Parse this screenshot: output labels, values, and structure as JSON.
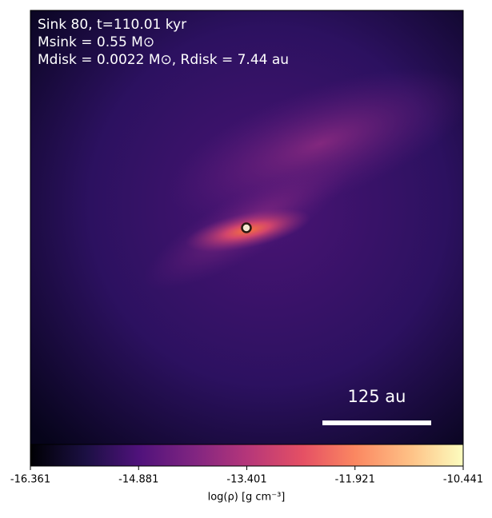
{
  "chart_data": {
    "type": "heatmap",
    "title": "Sink 80, t=110.01 kyr",
    "annotations": [
      "Msink = 0.55 M⊙",
      "Mdisk = 0.0022 M⊙, Rdisk = 7.44 au"
    ],
    "scale_bar_label": "125 au",
    "colorbar_label": "log(ρ) [g cm⁻³]",
    "clim": [
      -16.361,
      -10.441
    ],
    "cticks": [
      -16.361,
      -14.881,
      -13.401,
      -11.921,
      -10.441
    ]
  }
}
